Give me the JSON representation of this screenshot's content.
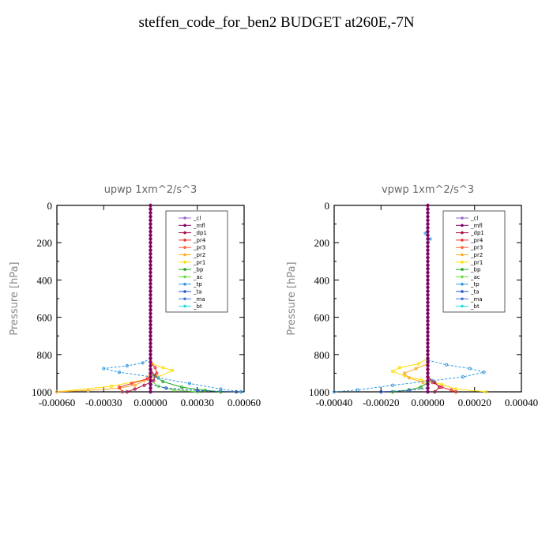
{
  "figure": {
    "title": "steffen_code_for_ben2  BUDGET at260E,-7N"
  },
  "legend_entries": [
    {
      "name": "_cl",
      "color": "#9966cc"
    },
    {
      "name": "_mfl",
      "color": "#800060"
    },
    {
      "name": "_dp1",
      "color": "#aa1144"
    },
    {
      "name": "_pr4",
      "color": "#ee3333"
    },
    {
      "name": "_pr3",
      "color": "#ff6644"
    },
    {
      "name": "_pr2",
      "color": "#ffaa22"
    },
    {
      "name": "_pr1",
      "color": "#ffdd00"
    },
    {
      "name": "_bp",
      "color": "#22aa22"
    },
    {
      "name": "_ac",
      "color": "#66dd44"
    },
    {
      "name": "_tp",
      "color": "#3399dd"
    },
    {
      "name": "_ta",
      "color": "#2255cc"
    },
    {
      "name": "_ma",
      "color": "#4477dd"
    },
    {
      "name": "_bt",
      "color": "#22dddd"
    }
  ],
  "chart_data": [
    {
      "type": "line",
      "title": "upwp   1xm^2/s^3",
      "xlabel": "",
      "ylabel": "Pressure [hPa]",
      "xlim": [
        -0.0006,
        0.0006
      ],
      "ylim": [
        1000,
        0
      ],
      "xticks": [
        "-0.00060",
        "-0.00030",
        "0.00000",
        "0.00030",
        "0.00060"
      ],
      "yticks": [
        "0",
        "200",
        "400",
        "600",
        "800",
        "1000"
      ],
      "legend_position": "top-right",
      "series": [
        {
          "name": "_mfl",
          "color": "#800060",
          "x": [
            0,
            0,
            0,
            0,
            0,
            0,
            0,
            0,
            0,
            0
          ],
          "y": [
            0,
            100,
            200,
            300,
            400,
            500,
            600,
            700,
            800,
            1000
          ]
        },
        {
          "name": "_pr1",
          "color": "#ffdd00",
          "x": [
            0,
            1e-05,
            8e-05,
            0.00014,
            5e-05,
            -0.00025,
            -0.0006
          ],
          "y": [
            820,
            850,
            870,
            885,
            920,
            970,
            1000
          ]
        },
        {
          "name": "_pr2",
          "color": "#ffaa22",
          "x": [
            0,
            -4e-05,
            -0.0001,
            -0.0002,
            -0.0004,
            -0.0006
          ],
          "y": [
            900,
            940,
            965,
            980,
            993,
            1000
          ]
        },
        {
          "name": "_pr4",
          "color": "#ee3333",
          "x": [
            0,
            3e-05,
            4e-05,
            -2e-05,
            -0.00012,
            -0.0002,
            -0.00018
          ],
          "y": [
            840,
            870,
            900,
            930,
            955,
            975,
            1000
          ]
        },
        {
          "name": "_dp1",
          "color": "#aa1144",
          "x": [
            0,
            3e-05,
            2e-05,
            -4e-05,
            -0.0001,
            -0.00015
          ],
          "y": [
            880,
            915,
            940,
            965,
            985,
            1000
          ]
        },
        {
          "name": "_bp",
          "color": "#22aa22",
          "x": [
            0,
            8e-05,
            0.0002,
            0.00035,
            0.00045
          ],
          "y": [
            900,
            945,
            975,
            992,
            1000
          ]
        },
        {
          "name": "_ac",
          "color": "#66dd44",
          "x": [
            0,
            5e-05,
            0.00015,
            0.0003
          ],
          "y": [
            940,
            970,
            990,
            1000
          ]
        },
        {
          "name": "_tp",
          "color": "#3399dd",
          "x": [
            0,
            -5e-05,
            -0.00015,
            -0.0003,
            -0.0002,
            5e-05,
            0.00025,
            0.00045,
            0.00058
          ],
          "y": [
            820,
            845,
            860,
            875,
            895,
            925,
            955,
            985,
            1000
          ]
        },
        {
          "name": "_ta",
          "color": "#2255cc",
          "x": [
            0,
            0.0001,
            0.0003,
            0.00055
          ],
          "y": [
            960,
            980,
            993,
            1000
          ]
        }
      ]
    },
    {
      "type": "line",
      "title": "vpwp   1xm^2/s^3",
      "xlabel": "",
      "ylabel": "Pressure [hPa]",
      "xlim": [
        -0.0004,
        0.0004
      ],
      "ylim": [
        1000,
        0
      ],
      "xticks": [
        "-0.00040",
        "-0.00020",
        "0.00000",
        "0.00020",
        "0.00040"
      ],
      "yticks": [
        "0",
        "200",
        "400",
        "600",
        "800",
        "1000"
      ],
      "legend_position": "top-right",
      "series": [
        {
          "name": "_mfl",
          "color": "#800060",
          "x": [
            0,
            0,
            0,
            0,
            0,
            0,
            0,
            0,
            0,
            0
          ],
          "y": [
            0,
            100,
            200,
            300,
            400,
            500,
            600,
            700,
            800,
            1000
          ]
        },
        {
          "name": "_tp",
          "color": "#3399dd",
          "x": [
            0,
            -1e-05,
            1e-05,
            0
          ],
          "y": [
            120,
            150,
            180,
            220
          ]
        },
        {
          "name": "_pr1",
          "color": "#ffdd00",
          "x": [
            0,
            -4e-05,
            -0.00012,
            -0.00015,
            -0.0001,
            -3e-05,
            6e-05,
            0.00012,
            0.00025
          ],
          "y": [
            820,
            850,
            870,
            890,
            915,
            935,
            960,
            985,
            1000
          ]
        },
        {
          "name": "_pr2",
          "color": "#ffaa22",
          "x": [
            0,
            -5e-05,
            -0.0001,
            -8e-05,
            -2e-05
          ],
          "y": [
            850,
            875,
            900,
            925,
            950
          ]
        },
        {
          "name": "_pr4",
          "color": "#ee3333",
          "x": [
            0,
            2e-05,
            6e-05,
            0.0001,
            0.00012
          ],
          "y": [
            920,
            950,
            975,
            990,
            1000
          ]
        },
        {
          "name": "_dp1",
          "color": "#aa1144",
          "x": [
            0,
            3e-05,
            5e-05,
            3e-05
          ],
          "y": [
            920,
            950,
            975,
            1000
          ]
        },
        {
          "name": "_bp",
          "color": "#22aa22",
          "x": [
            0,
            -3e-05,
            -8e-05,
            -0.00015
          ],
          "y": [
            950,
            975,
            990,
            1000
          ]
        },
        {
          "name": "_tp",
          "color": "#3399dd",
          "x": [
            0,
            8e-05,
            0.00018,
            0.00024,
            0.00015,
            2e-05,
            -0.00015,
            -0.0003,
            -0.0004
          ],
          "y": [
            830,
            855,
            875,
            895,
            920,
            940,
            965,
            990,
            1000
          ]
        },
        {
          "name": "_ta",
          "color": "#2255cc",
          "x": [
            0,
            -8e-05,
            -0.0002
          ],
          "y": [
            980,
            992,
            1000
          ]
        }
      ]
    }
  ]
}
